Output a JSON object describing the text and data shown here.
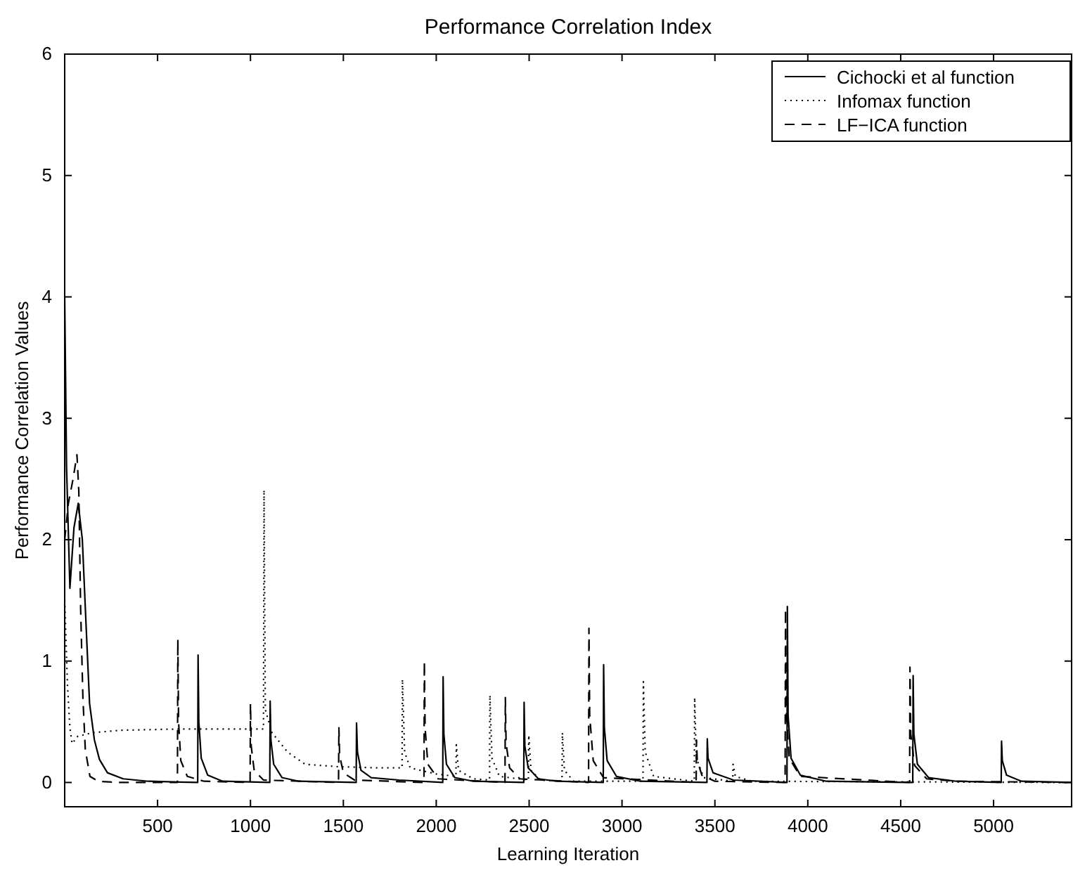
{
  "chart_data": {
    "type": "line",
    "title": "Performance Correlation Index",
    "xlabel": "Learning Iteration",
    "ylabel": "Performance Correlation Values",
    "xlim": [
      0,
      5420
    ],
    "xticks": [
      500,
      1000,
      1500,
      2000,
      2500,
      3000,
      3500,
      4000,
      4500,
      5000
    ],
    "ylim": [
      -0.2,
      6
    ],
    "yticks": [
      0,
      1,
      2,
      3,
      4,
      5,
      6
    ],
    "legend": "top right",
    "grid": false,
    "series": [
      {
        "name": "Cichocki et al function",
        "color": "#000000",
        "line_style": "solid",
        "x": [
          0,
          10,
          28,
          50,
          73,
          95,
          115,
          134,
          160,
          187,
          230,
          315,
          450,
          716,
          718,
          722,
          735,
          770,
          850,
          1104,
          1106,
          1110,
          1125,
          1170,
          1260,
          1569,
          1571,
          1576,
          1595,
          1650,
          1800,
          2035,
          2037,
          2041,
          2055,
          2100,
          2200,
          2471,
          2473,
          2477,
          2495,
          2550,
          2650,
          2899,
          2901,
          2905,
          2920,
          2970,
          3100,
          3457,
          3459,
          3463,
          3490,
          3600,
          3888,
          3890,
          3894,
          3910,
          3960,
          4100,
          4565,
          4567,
          4571,
          4590,
          4650,
          4800,
          5041,
          5043,
          5047,
          5070,
          5150,
          5420
        ],
        "values": [
          4.0,
          2.6,
          1.6,
          2.1,
          2.3,
          2.0,
          1.3,
          0.65,
          0.35,
          0.19,
          0.08,
          0.03,
          0.01,
          0,
          1.05,
          0.5,
          0.2,
          0.06,
          0.01,
          0,
          0.67,
          0.35,
          0.15,
          0.04,
          0.01,
          0,
          0.49,
          0.25,
          0.1,
          0.04,
          0.02,
          0,
          0.87,
          0.4,
          0.15,
          0.04,
          0.01,
          0,
          0.66,
          0.3,
          0.12,
          0.03,
          0.01,
          0,
          0.97,
          0.45,
          0.18,
          0.05,
          0.01,
          0,
          0.36,
          0.2,
          0.08,
          0.02,
          0,
          1.45,
          0.55,
          0.2,
          0.06,
          0.01,
          0,
          0.88,
          0.4,
          0.15,
          0.04,
          0.01,
          0,
          0.34,
          0.18,
          0.06,
          0.01,
          0
        ]
      },
      {
        "name": "Infomax function",
        "color": "#000000",
        "line_style": "dotted",
        "x": [
          0,
          15,
          28,
          40,
          70,
          150,
          300,
          600,
          1070,
          1073,
          1080,
          1116,
          1200,
          1294,
          1470,
          1700,
          1816,
          1818,
          1830,
          1860,
          2000,
          2106,
          2108,
          2120,
          2200,
          2287,
          2289,
          2300,
          2340,
          2496,
          2498,
          2510,
          2560,
          2677,
          2679,
          2690,
          2740,
          3113,
          3115,
          3125,
          3170,
          3389,
          3391,
          3400,
          3440,
          3596,
          3598,
          3610,
          3700,
          5420
        ],
        "values": [
          1.5,
          0.8,
          0.45,
          0.32,
          0.38,
          0.41,
          0.43,
          0.44,
          0.44,
          2.41,
          0.6,
          0.41,
          0.25,
          0.15,
          0.13,
          0.12,
          0.12,
          0.85,
          0.25,
          0.12,
          0.07,
          0.05,
          0.31,
          0.1,
          0.03,
          0.02,
          0.72,
          0.2,
          0.05,
          0.02,
          0.39,
          0.1,
          0.02,
          0.01,
          0.41,
          0.1,
          0.01,
          0.01,
          0.83,
          0.25,
          0.05,
          0.01,
          0.7,
          0.2,
          0.04,
          0.01,
          0.15,
          0.05,
          0.01,
          0
        ]
      },
      {
        "name": "LF−ICA function",
        "color": "#000000",
        "line_style": "dashed",
        "x": [
          0,
          20,
          45,
          66,
          76,
          86,
          98,
          111,
          136,
          180,
          300,
          607,
          609,
          613,
          625,
          660,
          750,
          998,
          1000,
          1004,
          1020,
          1070,
          1474,
          1476,
          1480,
          1500,
          1560,
          1934,
          1936,
          1940,
          1955,
          2010,
          2370,
          2372,
          2376,
          2395,
          2450,
          2820,
          2822,
          2826,
          2845,
          2900,
          3399,
          3401,
          3405,
          3430,
          3500,
          3878,
          3880,
          3884,
          3900,
          3960,
          4548,
          4550,
          4554,
          4575,
          4640,
          4800,
          5420
        ],
        "values": [
          2.0,
          2.3,
          2.5,
          2.7,
          2.4,
          1.42,
          0.7,
          0.27,
          0.05,
          0.01,
          0,
          0,
          1.18,
          0.5,
          0.18,
          0.05,
          0.01,
          0,
          0.65,
          0.3,
          0.1,
          0.02,
          0,
          0.45,
          0.22,
          0.08,
          0.02,
          0,
          1.0,
          0.45,
          0.15,
          0.03,
          0,
          0.7,
          0.32,
          0.12,
          0.03,
          0,
          1.27,
          0.55,
          0.18,
          0.04,
          0,
          0.35,
          0.18,
          0.06,
          0.01,
          0,
          1.43,
          0.6,
          0.2,
          0.05,
          0,
          0.95,
          0.4,
          0.14,
          0.03,
          0.01,
          0
        ]
      }
    ]
  }
}
